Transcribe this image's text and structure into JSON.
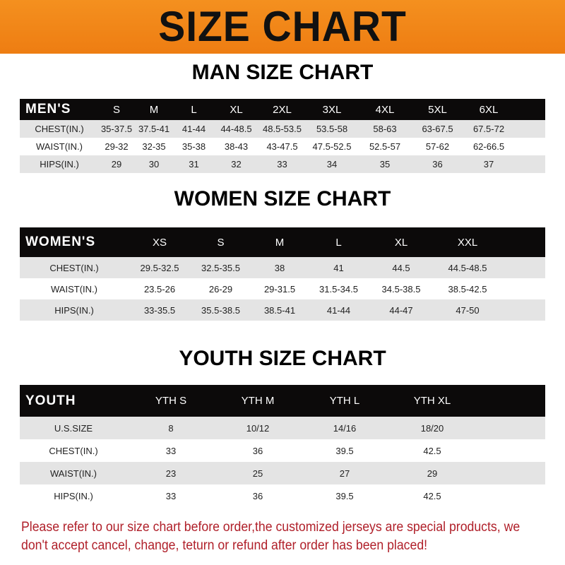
{
  "banner_title": "SIZE CHART",
  "men": {
    "title": "MAN SIZE CHART",
    "header": "MEN'S",
    "sizes": [
      "S",
      "M",
      "L",
      "XL",
      "2XL",
      "3XL",
      "4XL",
      "5XL",
      "6XL"
    ],
    "rows": [
      {
        "label": "CHEST(IN.)",
        "values": [
          "35-37.5",
          "37.5-41",
          "41-44",
          "44-48.5",
          "48.5-53.5",
          "53.5-58",
          "58-63",
          "63-67.5",
          "67.5-72"
        ]
      },
      {
        "label": "WAIST(IN.)",
        "values": [
          "29-32",
          "32-35",
          "35-38",
          "38-43",
          "43-47.5",
          "47.5-52.5",
          "52.5-57",
          "57-62",
          "62-66.5"
        ]
      },
      {
        "label": "HIPS(IN.)",
        "values": [
          "29",
          "30",
          "31",
          "32",
          "33",
          "34",
          "35",
          "36",
          "37"
        ]
      }
    ]
  },
  "women": {
    "title": "WOMEN SIZE CHART",
    "header": "WOMEN'S",
    "sizes": [
      "XS",
      "S",
      "M",
      "L",
      "XL",
      "XXL"
    ],
    "rows": [
      {
        "label": "CHEST(IN.)",
        "values": [
          "29.5-32.5",
          "32.5-35.5",
          "38",
          "41",
          "44.5",
          "44.5-48.5"
        ]
      },
      {
        "label": "WAIST(IN.)",
        "values": [
          "23.5-26",
          "26-29",
          "29-31.5",
          "31.5-34.5",
          "34.5-38.5",
          "38.5-42.5"
        ]
      },
      {
        "label": "HIPS(IN.)",
        "values": [
          "33-35.5",
          "35.5-38.5",
          "38.5-41",
          "41-44",
          "44-47",
          "47-50"
        ]
      }
    ]
  },
  "youth": {
    "title": "YOUTH SIZE CHART",
    "header": "YOUTH",
    "sizes": [
      "YTH S",
      "YTH M",
      "YTH L",
      "YTH XL"
    ],
    "rows": [
      {
        "label": "U.S.SIZE",
        "values": [
          "8",
          "10/12",
          "14/16",
          "18/20"
        ]
      },
      {
        "label": "CHEST(IN.)",
        "values": [
          "33",
          "36",
          "39.5",
          "42.5"
        ]
      },
      {
        "label": "WAIST(IN.)",
        "values": [
          "23",
          "25",
          "27",
          "29"
        ]
      },
      {
        "label": "HIPS(IN.)",
        "values": [
          "33",
          "36",
          "39.5",
          "42.5"
        ]
      }
    ]
  },
  "notice": "Please refer to our size chart before order,the customized jerseys are special products, we don't accept cancel, change, teturn or refund after order has been placed!"
}
